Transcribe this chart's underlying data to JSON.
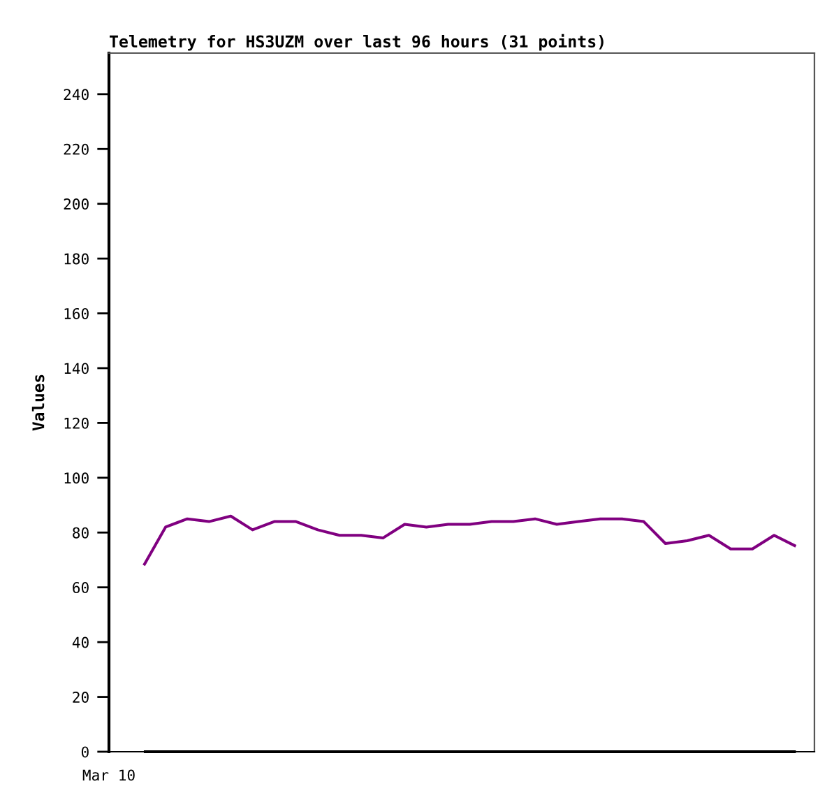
{
  "chart_data": {
    "type": "line",
    "title": "Telemetry for HS3UZM over last 96 hours (31 points)",
    "ylabel": "Values",
    "annotations": [
      "Mar 10"
    ],
    "categories": [
      null,
      null,
      null,
      null,
      null,
      null,
      null,
      null,
      null,
      null,
      null,
      null,
      null,
      null,
      null,
      null,
      null,
      null,
      null,
      null,
      null,
      null,
      null,
      null,
      null,
      null,
      null,
      null,
      null,
      null,
      null
    ],
    "ylim": [
      0,
      255
    ],
    "yticks": [
      0,
      20,
      40,
      60,
      80,
      100,
      120,
      140,
      160,
      180,
      200,
      220,
      240
    ],
    "grid": false,
    "marker": "none",
    "line_style": "solid",
    "series": [
      {
        "color": "#000000",
        "values": [
          0,
          0,
          0,
          0,
          0,
          0,
          0,
          0,
          0,
          0,
          0,
          0,
          0,
          0,
          0,
          0,
          0,
          0,
          0,
          0,
          0,
          0,
          0,
          0,
          0,
          0,
          0,
          0,
          0,
          0,
          0
        ]
      },
      {
        "color": "#800080",
        "values": [
          68,
          82,
          85,
          84,
          86,
          81,
          84,
          84,
          81,
          79,
          79,
          78,
          83,
          82,
          83,
          83,
          84,
          84,
          85,
          83,
          84,
          85,
          85,
          84,
          76,
          77,
          79,
          74,
          74,
          79,
          75
        ]
      }
    ]
  }
}
